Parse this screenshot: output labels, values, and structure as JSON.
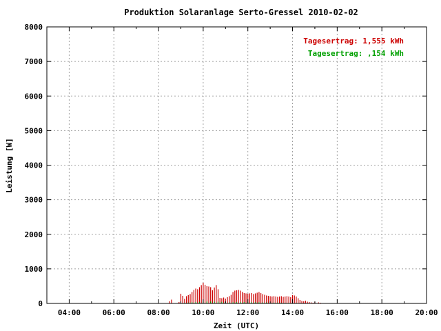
{
  "chart_data": {
    "type": "bar",
    "title": "Produktion Solaranlage Serto-Gressel 2010-02-02",
    "xlabel": "Zeit (UTC)",
    "ylabel": "Leistung [W]",
    "xlim_hours": [
      3.0,
      20.0
    ],
    "ylim": [
      0,
      8000
    ],
    "x_ticks": [
      "04:00",
      "06:00",
      "08:00",
      "10:00",
      "12:00",
      "14:00",
      "16:00",
      "18:00",
      "20:00"
    ],
    "y_ticks": [
      "0",
      "1000",
      "2000",
      "3000",
      "4000",
      "5000",
      "6000",
      "7000",
      "8000"
    ],
    "grid": true,
    "legend_position": "top-right",
    "colors": {
      "series_red": "#cc0000",
      "series_green": "#00a000",
      "grid": "#a0a0a0"
    },
    "series": [
      {
        "name": "Tagesertrag: 1,555 kWh",
        "color": "#cc0000",
        "x": [
          "08:30",
          "08:35",
          "08:55",
          "09:00",
          "09:05",
          "09:10",
          "09:15",
          "09:20",
          "09:25",
          "09:30",
          "09:35",
          "09:40",
          "09:45",
          "09:50",
          "09:55",
          "10:00",
          "10:05",
          "10:10",
          "10:15",
          "10:20",
          "10:25",
          "10:30",
          "10:35",
          "10:40",
          "10:45",
          "10:50",
          "10:55",
          "11:00",
          "11:05",
          "11:10",
          "11:15",
          "11:20",
          "11:25",
          "11:30",
          "11:35",
          "11:40",
          "11:45",
          "11:50",
          "11:55",
          "12:00",
          "12:05",
          "12:10",
          "12:15",
          "12:20",
          "12:25",
          "12:30",
          "12:35",
          "12:40",
          "12:45",
          "12:50",
          "12:55",
          "13:00",
          "13:05",
          "13:10",
          "13:15",
          "13:20",
          "13:25",
          "13:30",
          "13:35",
          "13:40",
          "13:45",
          "13:50",
          "13:55",
          "14:00",
          "14:05",
          "14:10",
          "14:15",
          "14:20",
          "14:25",
          "14:30",
          "14:35",
          "14:40",
          "14:45",
          "14:50",
          "14:55",
          "15:00",
          "15:05",
          "15:10",
          "15:15",
          "15:20"
        ],
        "values": [
          60,
          110,
          40,
          280,
          220,
          130,
          210,
          240,
          270,
          330,
          390,
          430,
          410,
          470,
          530,
          600,
          540,
          500,
          490,
          470,
          380,
          460,
          530,
          410,
          160,
          150,
          170,
          140,
          180,
          210,
          250,
          330,
          370,
          380,
          390,
          370,
          330,
          300,
          290,
          280,
          290,
          300,
          270,
          290,
          310,
          330,
          300,
          270,
          250,
          230,
          220,
          210,
          200,
          210,
          200,
          190,
          200,
          210,
          190,
          200,
          210,
          200,
          180,
          240,
          230,
          200,
          150,
          100,
          70,
          60,
          80,
          50,
          40,
          30,
          20,
          40,
          10,
          30,
          20,
          10
        ]
      },
      {
        "name": "Tagesertrag: ,154 kWh",
        "color": "#00a000",
        "x": [
          "09:00",
          "09:10",
          "09:20",
          "09:30",
          "09:40",
          "09:50",
          "10:00",
          "10:10",
          "10:20",
          "10:30",
          "10:40",
          "10:50",
          "11:00",
          "11:10",
          "11:20",
          "11:30",
          "11:40",
          "11:50",
          "12:00",
          "12:10",
          "12:20",
          "12:30",
          "12:40",
          "12:50",
          "13:00",
          "13:10",
          "13:20",
          "13:30",
          "13:40",
          "13:50",
          "14:00",
          "14:10",
          "14:20",
          "14:30"
        ],
        "values": [
          10,
          20,
          25,
          35,
          40,
          45,
          50,
          55,
          55,
          50,
          50,
          45,
          40,
          30,
          35,
          40,
          45,
          40,
          40,
          35,
          35,
          35,
          30,
          30,
          25,
          25,
          25,
          20,
          20,
          20,
          20,
          15,
          15,
          10
        ]
      }
    ]
  }
}
